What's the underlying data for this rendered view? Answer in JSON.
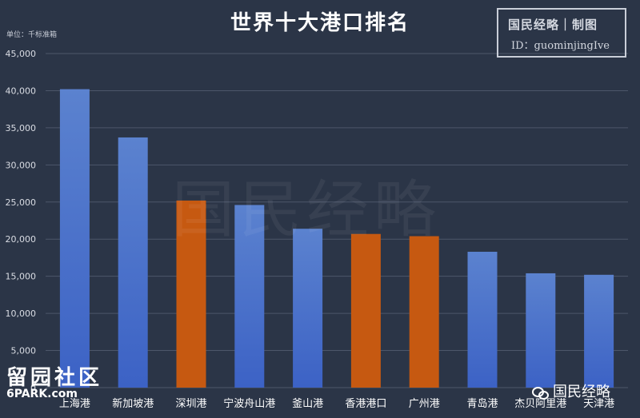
{
  "header": {
    "title": "世界十大港口排名",
    "unit_label": "单位：千标准箱"
  },
  "logo": {
    "line1": "国民经略｜制图",
    "line2": "ID：guominjingIve"
  },
  "watermarks": {
    "center": "国民经略",
    "left_cn": "留园社区",
    "left_site": "6PARK.com",
    "right": "国民经略"
  },
  "colors": {
    "background": "#2b3547",
    "bar_blue_top": "#5b82cf",
    "bar_blue_bottom": "#3c62c5",
    "bar_orange": "#c65911",
    "grid": "#4c566a",
    "axis_text": "#d9dce3"
  },
  "chart_data": {
    "type": "bar",
    "title": "世界十大港口排名",
    "ylabel": "单位：千标准箱",
    "xlabel": "",
    "categories": [
      "上海港",
      "新加坡港",
      "深圳港",
      "宁波舟山港",
      "釜山港",
      "香港港口",
      "广州港",
      "青岛港",
      "杰贝阿里港",
      "天津港"
    ],
    "values": [
      40200,
      33700,
      25200,
      24600,
      21400,
      20700,
      20400,
      18300,
      15400,
      15200
    ],
    "highlight": [
      false,
      false,
      true,
      false,
      false,
      true,
      true,
      false,
      false,
      false
    ],
    "ylim": [
      0,
      45000
    ],
    "yticks": [
      "0",
      "5,000",
      "10,000",
      "15,000",
      "20,000",
      "25,000",
      "30,000",
      "35,000",
      "40,000",
      "45,000"
    ],
    "ytick_values": [
      0,
      5000,
      10000,
      15000,
      20000,
      25000,
      30000,
      35000,
      40000,
      45000
    ],
    "grid": true,
    "legend": "none"
  }
}
